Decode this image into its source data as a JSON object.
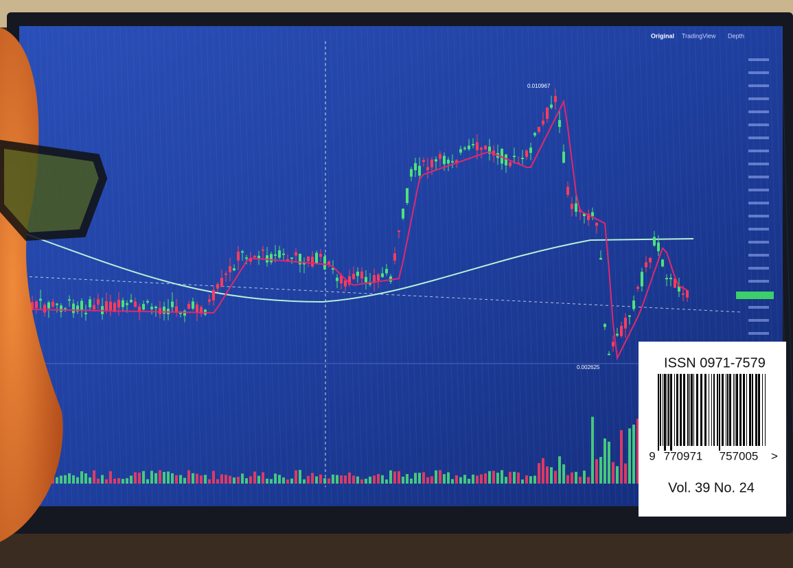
{
  "screen": {
    "tabs": [
      "Original",
      "TradingView",
      "Depth"
    ],
    "high_label": "0.010967",
    "low_label": "0.002625"
  },
  "barcode_box": {
    "issn": "ISSN 0971-7579",
    "digits": [
      "9",
      "770971",
      "757005",
      ">"
    ],
    "volume": "Vol. 39 No. 24"
  }
}
